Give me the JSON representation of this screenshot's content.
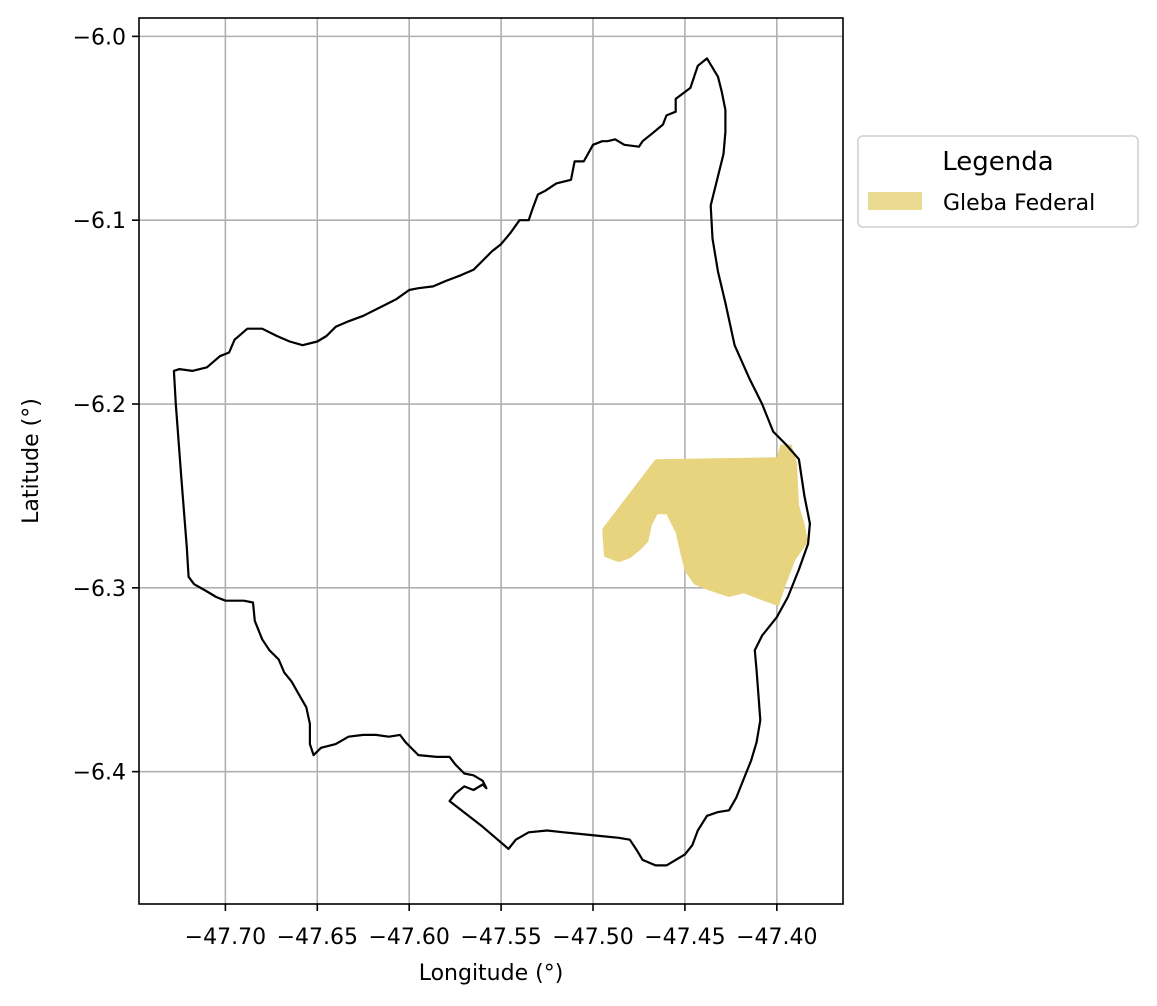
{
  "figure": {
    "xlabel": "Longitude (°)",
    "ylabel": "Latitude (°)",
    "legend": {
      "title": "Legenda",
      "items": [
        {
          "label": "Gleba Federal",
          "color": "#e8d37f"
        }
      ],
      "position": "outside-right-top"
    }
  },
  "chart_data": {
    "type": "map",
    "grid": true,
    "xlim": [
      -47.747,
      -47.364
    ],
    "ylim": [
      -6.472,
      -5.99
    ],
    "x_ticks": [
      {
        "value": -47.7,
        "label": "−47.70"
      },
      {
        "value": -47.65,
        "label": "−47.65"
      },
      {
        "value": -47.6,
        "label": "−47.60"
      },
      {
        "value": -47.55,
        "label": "−47.55"
      },
      {
        "value": -47.5,
        "label": "−47.50"
      },
      {
        "value": -47.45,
        "label": "−47.45"
      },
      {
        "value": -47.4,
        "label": "−47.40"
      }
    ],
    "y_ticks": [
      {
        "value": -6.0,
        "label": "−6.0"
      },
      {
        "value": -6.1,
        "label": "−6.1"
      },
      {
        "value": -6.2,
        "label": "−6.2"
      },
      {
        "value": -6.3,
        "label": "−6.3"
      },
      {
        "value": -6.4,
        "label": "−6.4"
      }
    ],
    "layers": [
      {
        "name": "municipality-boundary",
        "style": "outline",
        "stroke": "#000000",
        "coordinates": [
          [
            -47.438,
            -6.012
          ],
          [
            -47.443,
            -6.016
          ],
          [
            -47.447,
            -6.028
          ],
          [
            -47.455,
            -6.034
          ],
          [
            -47.455,
            -6.041
          ],
          [
            -47.46,
            -6.043
          ],
          [
            -47.462,
            -6.048
          ],
          [
            -47.468,
            -6.053
          ],
          [
            -47.473,
            -6.057
          ],
          [
            -47.475,
            -6.06
          ],
          [
            -47.483,
            -6.059
          ],
          [
            -47.488,
            -6.056
          ],
          [
            -47.492,
            -6.057
          ],
          [
            -47.495,
            -6.057
          ],
          [
            -47.5,
            -6.059
          ],
          [
            -47.505,
            -6.068
          ],
          [
            -47.51,
            -6.068
          ],
          [
            -47.512,
            -6.078
          ],
          [
            -47.52,
            -6.08
          ],
          [
            -47.526,
            -6.084
          ],
          [
            -47.53,
            -6.086
          ],
          [
            -47.533,
            -6.094
          ],
          [
            -47.535,
            -6.1
          ],
          [
            -47.54,
            -6.1
          ],
          [
            -47.545,
            -6.107
          ],
          [
            -47.55,
            -6.113
          ],
          [
            -47.555,
            -6.117
          ],
          [
            -47.56,
            -6.122
          ],
          [
            -47.565,
            -6.127
          ],
          [
            -47.572,
            -6.13
          ],
          [
            -47.58,
            -6.133
          ],
          [
            -47.587,
            -6.136
          ],
          [
            -47.595,
            -6.137
          ],
          [
            -47.6,
            -6.138
          ],
          [
            -47.607,
            -6.143
          ],
          [
            -47.615,
            -6.147
          ],
          [
            -47.625,
            -6.152
          ],
          [
            -47.633,
            -6.155
          ],
          [
            -47.64,
            -6.158
          ],
          [
            -47.645,
            -6.163
          ],
          [
            -47.65,
            -6.166
          ],
          [
            -47.658,
            -6.168
          ],
          [
            -47.665,
            -6.166
          ],
          [
            -47.672,
            -6.163
          ],
          [
            -47.68,
            -6.159
          ],
          [
            -47.688,
            -6.159
          ],
          [
            -47.695,
            -6.165
          ],
          [
            -47.698,
            -6.172
          ],
          [
            -47.703,
            -6.174
          ],
          [
            -47.71,
            -6.18
          ],
          [
            -47.718,
            -6.182
          ],
          [
            -47.725,
            -6.181
          ],
          [
            -47.728,
            -6.182
          ],
          [
            -47.727,
            -6.2
          ],
          [
            -47.724,
            -6.24
          ],
          [
            -47.721,
            -6.278
          ],
          [
            -47.72,
            -6.294
          ],
          [
            -47.717,
            -6.298
          ],
          [
            -47.71,
            -6.302
          ],
          [
            -47.705,
            -6.305
          ],
          [
            -47.7,
            -6.307
          ],
          [
            -47.69,
            -6.307
          ],
          [
            -47.685,
            -6.308
          ],
          [
            -47.684,
            -6.318
          ],
          [
            -47.68,
            -6.328
          ],
          [
            -47.676,
            -6.334
          ],
          [
            -47.671,
            -6.339
          ],
          [
            -47.668,
            -6.346
          ],
          [
            -47.664,
            -6.351
          ],
          [
            -47.66,
            -6.358
          ],
          [
            -47.656,
            -6.365
          ],
          [
            -47.654,
            -6.374
          ],
          [
            -47.654,
            -6.385
          ],
          [
            -47.652,
            -6.391
          ],
          [
            -47.648,
            -6.387
          ],
          [
            -47.64,
            -6.385
          ],
          [
            -47.633,
            -6.381
          ],
          [
            -47.625,
            -6.38
          ],
          [
            -47.618,
            -6.38
          ],
          [
            -47.611,
            -6.381
          ],
          [
            -47.605,
            -6.38
          ],
          [
            -47.602,
            -6.384
          ],
          [
            -47.598,
            -6.388
          ],
          [
            -47.595,
            -6.391
          ],
          [
            -47.585,
            -6.392
          ],
          [
            -47.578,
            -6.392
          ],
          [
            -47.575,
            -6.396
          ],
          [
            -47.57,
            -6.401
          ],
          [
            -47.565,
            -6.402
          ],
          [
            -47.56,
            -6.405
          ],
          [
            -47.558,
            -6.409
          ],
          [
            -47.56,
            -6.407
          ],
          [
            -47.565,
            -6.41
          ],
          [
            -47.57,
            -6.408
          ],
          [
            -47.575,
            -6.412
          ],
          [
            -47.578,
            -6.416
          ],
          [
            -47.56,
            -6.43
          ],
          [
            -47.546,
            -6.442
          ],
          [
            -47.542,
            -6.437
          ],
          [
            -47.535,
            -6.433
          ],
          [
            -47.525,
            -6.432
          ],
          [
            -47.516,
            -6.433
          ],
          [
            -47.506,
            -6.434
          ],
          [
            -47.496,
            -6.435
          ],
          [
            -47.486,
            -6.436
          ],
          [
            -47.48,
            -6.437
          ],
          [
            -47.476,
            -6.443
          ],
          [
            -47.473,
            -6.448
          ],
          [
            -47.466,
            -6.451
          ],
          [
            -47.46,
            -6.451
          ],
          [
            -47.455,
            -6.448
          ],
          [
            -47.45,
            -6.445
          ],
          [
            -47.446,
            -6.44
          ],
          [
            -47.443,
            -6.432
          ],
          [
            -47.438,
            -6.424
          ],
          [
            -47.432,
            -6.422
          ],
          [
            -47.426,
            -6.421
          ],
          [
            -47.422,
            -6.414
          ],
          [
            -47.418,
            -6.404
          ],
          [
            -47.414,
            -6.394
          ],
          [
            -47.411,
            -6.384
          ],
          [
            -47.409,
            -6.372
          ],
          [
            -47.41,
            -6.358
          ],
          [
            -47.411,
            -6.345
          ],
          [
            -47.412,
            -6.334
          ],
          [
            -47.408,
            -6.326
          ],
          [
            -47.4,
            -6.316
          ],
          [
            -47.394,
            -6.305
          ],
          [
            -47.388,
            -6.29
          ],
          [
            -47.383,
            -6.276
          ],
          [
            -47.382,
            -6.265
          ],
          [
            -47.385,
            -6.25
          ],
          [
            -47.388,
            -6.23
          ],
          [
            -47.395,
            -6.222
          ],
          [
            -47.402,
            -6.215
          ],
          [
            -47.408,
            -6.2
          ],
          [
            -47.415,
            -6.186
          ],
          [
            -47.423,
            -6.168
          ],
          [
            -47.428,
            -6.145
          ],
          [
            -47.432,
            -6.128
          ],
          [
            -47.435,
            -6.11
          ],
          [
            -47.436,
            -6.092
          ],
          [
            -47.432,
            -6.076
          ],
          [
            -47.429,
            -6.064
          ],
          [
            -47.428,
            -6.052
          ],
          [
            -47.428,
            -6.04
          ],
          [
            -47.43,
            -6.03
          ],
          [
            -47.432,
            -6.022
          ],
          [
            -47.438,
            -6.012
          ]
        ]
      },
      {
        "name": "Gleba Federal",
        "style": "fill",
        "fill": "#e8d37f",
        "coordinates": [
          [
            -47.495,
            -6.268
          ],
          [
            -47.466,
            -6.23
          ],
          [
            -47.4,
            -6.229
          ],
          [
            -47.398,
            -6.222
          ],
          [
            -47.392,
            -6.222
          ],
          [
            -47.389,
            -6.232
          ],
          [
            -47.388,
            -6.255
          ],
          [
            -47.385,
            -6.265
          ],
          [
            -47.383,
            -6.275
          ],
          [
            -47.39,
            -6.285
          ],
          [
            -47.395,
            -6.298
          ],
          [
            -47.399,
            -6.31
          ],
          [
            -47.41,
            -6.306
          ],
          [
            -47.418,
            -6.303
          ],
          [
            -47.426,
            -6.305
          ],
          [
            -47.438,
            -6.301
          ],
          [
            -47.445,
            -6.298
          ],
          [
            -47.45,
            -6.291
          ],
          [
            -47.452,
            -6.283
          ],
          [
            -47.455,
            -6.27
          ],
          [
            -47.46,
            -6.26
          ],
          [
            -47.465,
            -6.26
          ],
          [
            -47.468,
            -6.266
          ],
          [
            -47.47,
            -6.275
          ],
          [
            -47.475,
            -6.28
          ],
          [
            -47.48,
            -6.284
          ],
          [
            -47.486,
            -6.286
          ],
          [
            -47.494,
            -6.283
          ]
        ]
      }
    ]
  }
}
